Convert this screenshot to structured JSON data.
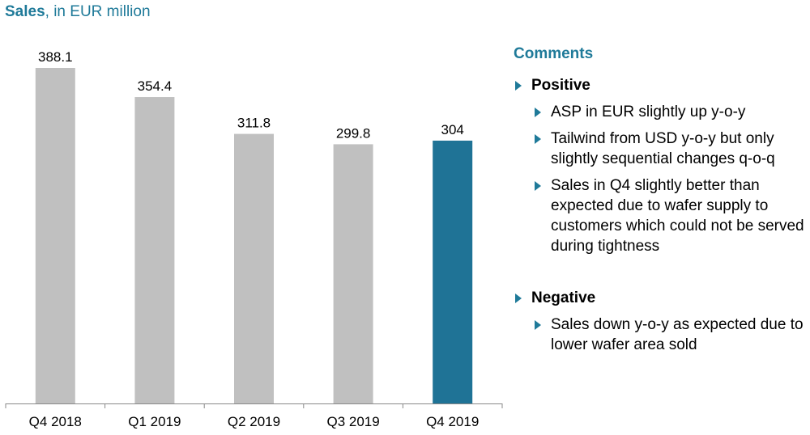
{
  "header": {
    "title_bold": "Sales",
    "title_rest": ", in EUR million"
  },
  "chart_data": {
    "type": "bar",
    "categories": [
      "Q4 2018",
      "Q1 2019",
      "Q2 2019",
      "Q3 2019",
      "Q4 2019"
    ],
    "values": [
      388.1,
      354.4,
      311.8,
      299.8,
      304
    ],
    "value_labels": [
      "388.1",
      "354.4",
      "311.8",
      "299.8",
      "304"
    ],
    "colors": [
      "#c0c0c0",
      "#c0c0c0",
      "#c0c0c0",
      "#c0c0c0",
      "#1f7396"
    ],
    "title": "Sales, in EUR million",
    "ylim": [
      0,
      400
    ]
  },
  "comments": {
    "title": "Comments",
    "groups": [
      {
        "label": "Positive",
        "items": [
          "ASP in EUR slightly up y-o-y",
          "Tailwind from USD y-o-y but only slightly sequential changes q-o-q",
          "Sales in Q4 slightly better than expected due to wafer supply to customers which could not be served during tightness"
        ]
      },
      {
        "label": "Negative",
        "items": [
          "Sales down y-o-y as expected due to lower wafer area sold"
        ]
      }
    ]
  },
  "accent_color": "#1f7a99"
}
